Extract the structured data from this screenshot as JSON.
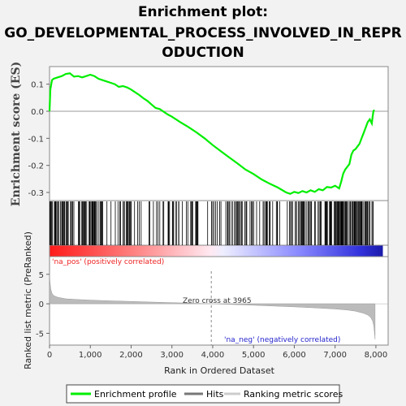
{
  "title_lines": [
    "Enrichment plot:",
    "GO_DEVELOPMENTAL_PROCESS_INVOLVED_IN_REPR",
    "ODUCTION"
  ],
  "colors": {
    "es_line": "#00ee00",
    "hits": "#000000",
    "ranking_fill": "#bbbbbb",
    "pos_label": "#ee2222",
    "neg_label": "#2222cc",
    "zero_line": "#999999"
  },
  "chart_data": [
    {
      "type": "line",
      "panel": "enrichment",
      "ylabel": "Enrichment score (ES)",
      "xlim": [
        0,
        8300
      ],
      "ylim": [
        -0.33,
        0.165
      ],
      "yticks": [
        0.1,
        0.0,
        -0.1,
        -0.2,
        -0.3
      ],
      "ytick_labels": [
        "0.1",
        "0.0",
        "-0.1",
        "-0.2",
        "-0.3"
      ],
      "series": [
        {
          "x": [
            0,
            20,
            60,
            100,
            200,
            300,
            400,
            500,
            600,
            700,
            800,
            900,
            1000,
            1100,
            1200,
            1300,
            1400,
            1500,
            1600,
            1700,
            1800,
            1900,
            2000,
            2100,
            2200,
            2300,
            2400,
            2500,
            2600,
            2700,
            2800,
            2900,
            3000,
            3200,
            3400,
            3600,
            3800,
            4000,
            4200,
            4400,
            4600,
            4800,
            5000,
            5200,
            5400,
            5600,
            5800,
            5900,
            6000,
            6100,
            6200,
            6300,
            6400,
            6500,
            6600,
            6700,
            6800,
            6900,
            7000,
            7100,
            7150,
            7200,
            7250,
            7300,
            7350,
            7400,
            7450,
            7500,
            7550,
            7600,
            7650,
            7700,
            7750,
            7800,
            7850,
            7900,
            7920,
            7940,
            7960
          ],
          "values": [
            0.0,
            0.08,
            0.115,
            0.12,
            0.125,
            0.13,
            0.138,
            0.14,
            0.128,
            0.13,
            0.125,
            0.13,
            0.135,
            0.13,
            0.12,
            0.115,
            0.11,
            0.105,
            0.1,
            0.09,
            0.093,
            0.088,
            0.08,
            0.07,
            0.06,
            0.048,
            0.038,
            0.025,
            0.012,
            0.008,
            -0.002,
            -0.012,
            -0.02,
            -0.04,
            -0.058,
            -0.078,
            -0.1,
            -0.125,
            -0.148,
            -0.17,
            -0.192,
            -0.215,
            -0.232,
            -0.252,
            -0.268,
            -0.282,
            -0.3,
            -0.305,
            -0.298,
            -0.302,
            -0.295,
            -0.3,
            -0.292,
            -0.298,
            -0.288,
            -0.292,
            -0.28,
            -0.282,
            -0.275,
            -0.285,
            -0.26,
            -0.23,
            -0.215,
            -0.205,
            -0.195,
            -0.16,
            -0.145,
            -0.14,
            -0.13,
            -0.12,
            -0.1,
            -0.08,
            -0.06,
            -0.04,
            -0.03,
            -0.045,
            -0.02,
            0.0,
            0.005
          ]
        }
      ]
    },
    {
      "type": "area",
      "panel": "ranked_list",
      "ylabel": "Ranked list metric (PreRanked)",
      "xlabel": "Rank in Ordered Dataset",
      "xlim": [
        0,
        8300
      ],
      "ylim": [
        -7,
        8
      ],
      "yticks": [
        5,
        0,
        -5
      ],
      "ytick_labels": [
        "5",
        "0",
        "-5"
      ],
      "xticks": [
        0,
        1000,
        2000,
        3000,
        4000,
        5000,
        6000,
        7000,
        8000
      ],
      "xtick_labels": [
        "0",
        "1,000",
        "2,000",
        "3,000",
        "4,000",
        "5,000",
        "6,000",
        "7,000",
        "8,000"
      ],
      "zero_cross": 3965,
      "zero_cross_label": "Zero cross at 3965",
      "pos_label": "'na_pos' (positively correlated)",
      "neg_label": "'na_neg' (negatively correlated)",
      "x": [
        0,
        10,
        30,
        60,
        100,
        200,
        400,
        700,
        1000,
        1500,
        2000,
        2500,
        3000,
        3500,
        3965,
        4500,
        5000,
        5500,
        6000,
        6500,
        7000,
        7300,
        7500,
        7700,
        7800,
        7870,
        7920,
        7950,
        7980
      ],
      "values": [
        5.2,
        3.8,
        2.5,
        1.8,
        1.4,
        1.1,
        0.85,
        0.72,
        0.62,
        0.5,
        0.4,
        0.3,
        0.2,
        0.1,
        0.0,
        -0.12,
        -0.25,
        -0.38,
        -0.52,
        -0.68,
        -0.88,
        -1.05,
        -1.25,
        -1.6,
        -1.9,
        -2.3,
        -2.9,
        -3.8,
        -6.0
      ]
    }
  ],
  "legend": [
    {
      "label": "Enrichment profile",
      "color": "#00ee00"
    },
    {
      "label": "Hits",
      "color": "#777777"
    },
    {
      "label": "Ranking metric scores",
      "color": "#cccccc"
    }
  ]
}
